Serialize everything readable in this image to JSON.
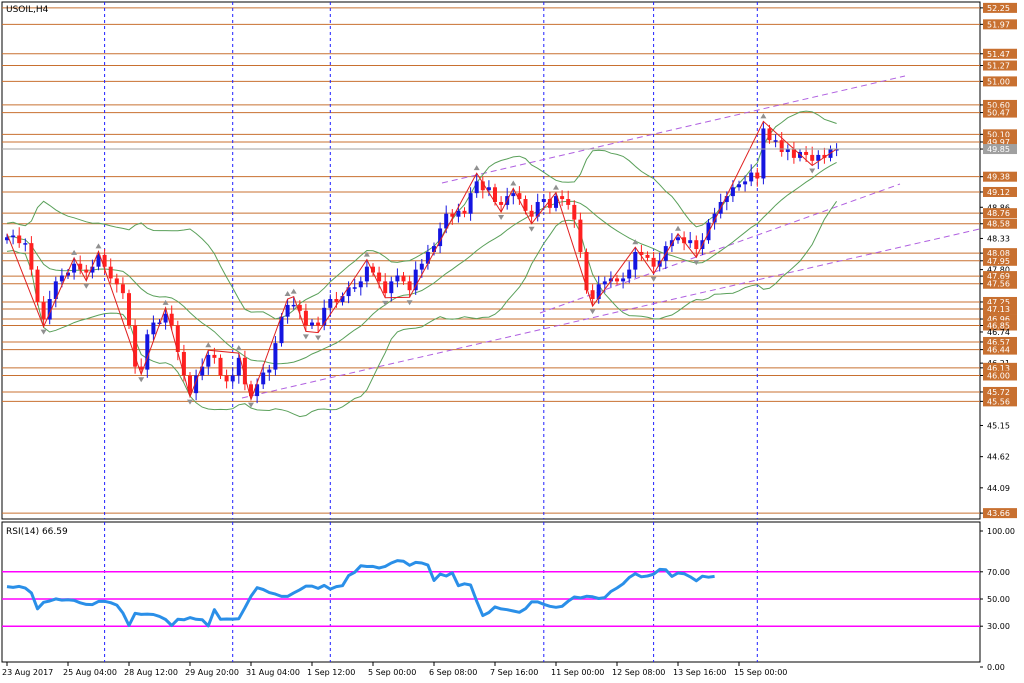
{
  "header": {
    "symbol": "USOIL,H4",
    "rsi_label": "RSI(14) 66.59"
  },
  "colors": {
    "bull": "#1515e0",
    "bear": "#ff2020",
    "zigzag": "#e02020",
    "band": "#5aa05a",
    "level": "#c87030",
    "channel": "#b060e0",
    "rsi_line": "#2a8fe8",
    "rsi_level": "#ff00ff",
    "separator": "#2020ff",
    "label_bg": "#c87030",
    "current_bg": "#a0a0a0"
  },
  "chart_data": [
    {
      "type": "line",
      "title": "USOIL,H4",
      "x_dates": [
        "23 Aug 2017",
        "25 Aug 04:00",
        "28 Aug 12:00",
        "29 Aug 20:00",
        "31 Aug 04:00",
        "1 Sep 12:00",
        "5 Sep 00:00",
        "6 Sep 08:00",
        "7 Sep 16:00",
        "11 Sep 00:00",
        "12 Sep 08:00",
        "13 Sep 16:00",
        "15 Sep 00:00"
      ],
      "y_ticks": [
        52.25,
        51.97,
        51.47,
        51.27,
        51.0,
        50.6,
        50.47,
        50.1,
        49.97,
        49.85,
        49.38,
        49.12,
        48.86,
        48.76,
        48.58,
        48.33,
        48.08,
        47.95,
        47.8,
        47.69,
        47.56,
        47.25,
        47.13,
        46.96,
        46.85,
        46.74,
        46.57,
        46.44,
        46.21,
        46.13,
        46.0,
        45.72,
        45.56,
        45.15,
        44.62,
        44.09,
        43.66
      ],
      "y_range": [
        43.56,
        52.35
      ],
      "current_price": 49.85,
      "horizontal_levels": [
        52.25,
        51.97,
        51.47,
        51.27,
        51.0,
        50.6,
        50.47,
        50.1,
        49.97,
        49.38,
        49.12,
        48.76,
        48.58,
        48.08,
        47.95,
        47.69,
        47.56,
        47.25,
        47.13,
        46.96,
        46.85,
        46.57,
        46.44,
        46.13,
        46.0,
        45.72,
        45.56,
        43.66
      ],
      "closes": [
        48.35,
        48.38,
        48.25,
        48.25,
        47.8,
        47.25,
        46.95,
        47.3,
        47.6,
        47.7,
        47.75,
        47.9,
        47.8,
        47.75,
        47.85,
        48.05,
        47.85,
        47.65,
        47.55,
        47.4,
        46.85,
        46.15,
        46.1,
        46.7,
        46.9,
        46.9,
        47.05,
        46.85,
        46.4,
        46.0,
        45.7,
        46.0,
        46.15,
        46.35,
        46.3,
        46.0,
        45.9,
        46.0,
        46.3,
        45.85,
        45.65,
        45.85,
        46.05,
        46.1,
        46.55,
        47.0,
        47.2,
        47.2,
        47.1,
        46.85,
        46.9,
        46.85,
        47.15,
        47.3,
        47.25,
        47.35,
        47.5,
        47.5,
        47.6,
        47.85,
        47.75,
        47.6,
        47.4,
        47.6,
        47.7,
        47.6,
        47.45,
        47.8,
        47.9,
        48.1,
        48.2,
        48.5,
        48.75,
        48.7,
        48.8,
        48.75,
        49.1,
        49.3,
        49.15,
        49.2,
        48.95,
        48.9,
        49.05,
        49.1,
        49.0,
        48.8,
        48.7,
        48.95,
        49.0,
        48.85,
        49.05,
        49.0,
        48.9,
        48.65,
        48.1,
        47.45,
        47.3,
        47.55,
        47.6,
        47.65,
        47.6,
        47.65,
        47.8,
        48.1,
        48.05,
        48.0,
        47.85,
        47.95,
        48.2,
        48.3,
        48.35,
        48.25,
        48.3,
        48.15,
        48.3,
        48.6,
        48.75,
        48.95,
        49.05,
        49.2,
        49.25,
        49.3,
        49.45,
        49.35,
        50.2,
        50.0,
        50.0,
        49.8,
        49.85,
        49.7,
        49.8,
        49.75,
        49.65,
        49.75,
        49.7,
        49.85,
        49.85
      ],
      "rsi": {
        "title": "RSI(14) 66.59",
        "levels": [
          70,
          50,
          30
        ],
        "y_ticks": [
          100.0,
          70.0,
          50.0,
          30.0,
          0.0
        ],
        "last": 66.59,
        "values": [
          59.1,
          58.5,
          59.3,
          58.0,
          54.5,
          42.8,
          47.6,
          48.5,
          50.1,
          49.2,
          49.5,
          49.0,
          47.2,
          46.0,
          45.9,
          48.2,
          48.3,
          47.3,
          45.5,
          39.7,
          30.5,
          39.5,
          38.7,
          38.9,
          38.6,
          37.2,
          34.9,
          30.5,
          35.1,
          34.7,
          36.3,
          35.1,
          34.8,
          30.2,
          42.1,
          35.1,
          35.3,
          35.2,
          35.5,
          43.5,
          52.0,
          58.3,
          57.0,
          54.7,
          53.6,
          51.9,
          51.9,
          54.5,
          56.8,
          59.5,
          59.5,
          57.8,
          60.0,
          57.3,
          59.1,
          59.8,
          67.2,
          69.6,
          74.4,
          73.9,
          74.0,
          72.8,
          74.0,
          76.5,
          78.2,
          77.7,
          74.8,
          76.9,
          76.5,
          74.9,
          63.6,
          68.3,
          66.9,
          69.3,
          59.8,
          61.2,
          60.3,
          48.4,
          37.8,
          40.1,
          44.2,
          42.7,
          42.1,
          41.2,
          40.2,
          42.9,
          47.9,
          47.9,
          46.1,
          44.6,
          43.9,
          44.6,
          48.4,
          51.5,
          50.8,
          52.0,
          51.6,
          50.4,
          51.0,
          55.5,
          58.1,
          61.2,
          65.8,
          68.6,
          66.3,
          66.9,
          68.2,
          71.8,
          71.5,
          66.6,
          69.1,
          68.6,
          66.3,
          63.4,
          66.8,
          66.0,
          66.6
        ]
      }
    }
  ]
}
